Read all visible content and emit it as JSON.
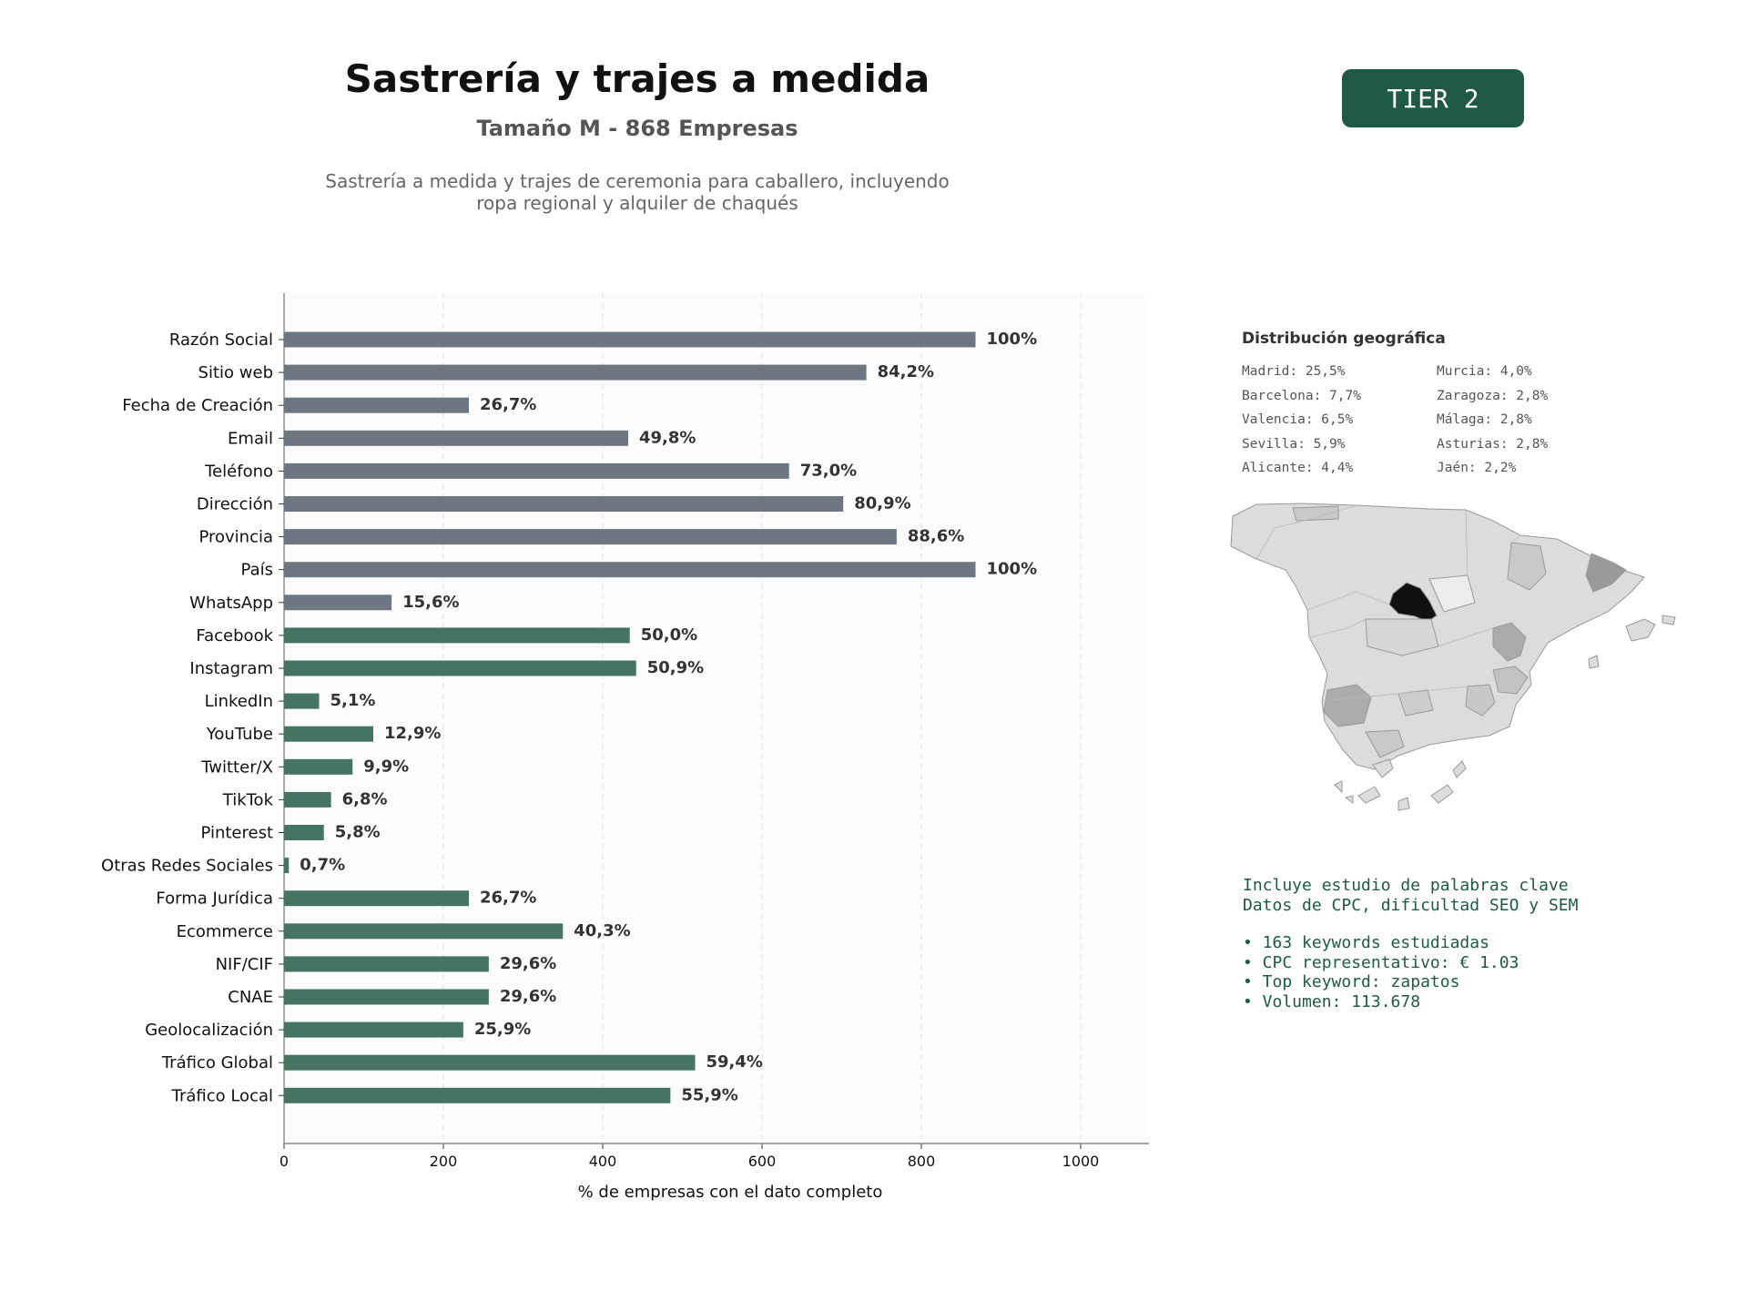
{
  "header": {
    "title": "Sastrería y trajes a medida",
    "subtitle": "Tamaño M - 868 Empresas",
    "description_line1": "Sastrería a medida y trajes de ceremonia para caballero, incluyendo",
    "description_line2": "ropa regional y alquiler de chaqués",
    "tier": "TIER 2"
  },
  "colors": {
    "gray_bar": "#6e7781",
    "green_bar": "#467463",
    "accent": "#1e5a46"
  },
  "chart_data": {
    "type": "bar",
    "orientation": "horizontal",
    "xlabel": "% de empresas con el dato completo",
    "xlim": [
      0,
      1085
    ],
    "xticks": [
      0,
      200,
      400,
      600,
      800,
      1000
    ],
    "grid": "vertical dashed",
    "categories": [
      "Razón Social",
      "Sitio web",
      "Fecha de Creación",
      "Email",
      "Teléfono",
      "Dirección",
      "Provincia",
      "País",
      "WhatsApp",
      "Facebook",
      "Instagram",
      "LinkedIn",
      "YouTube",
      "Twitter/X",
      "TikTok",
      "Pinterest",
      "Otras Redes Sociales",
      "Forma Jurídica",
      "Ecommerce",
      "NIF/CIF",
      "CNAE",
      "Geolocalización",
      "Tráfico Global",
      "Tráfico Local"
    ],
    "values": [
      868,
      731,
      232,
      432,
      634,
      702,
      769,
      868,
      135,
      434,
      442,
      44,
      112,
      86,
      59,
      50,
      6,
      232,
      350,
      257,
      257,
      225,
      516,
      485
    ],
    "labels": [
      "100%",
      "84,2%",
      "26,7%",
      "49,8%",
      "73,0%",
      "80,9%",
      "88,6%",
      "100%",
      "15,6%",
      "50,0%",
      "50,9%",
      "5,1%",
      "12,9%",
      "9,9%",
      "6,8%",
      "5,8%",
      "0,7%",
      "26,7%",
      "40,3%",
      "29,6%",
      "29,6%",
      "25,9%",
      "59,4%",
      "55,9%"
    ],
    "groups": [
      "gray",
      "gray",
      "gray",
      "gray",
      "gray",
      "gray",
      "gray",
      "gray",
      "gray",
      "green",
      "green",
      "green",
      "green",
      "green",
      "green",
      "green",
      "green",
      "green",
      "green",
      "green",
      "green",
      "green",
      "green",
      "green"
    ]
  },
  "geo": {
    "title": "Distribución geográfica",
    "items": [
      "Madrid: 25,5%",
      "Murcia: 4,0%",
      "Barcelona: 7,7%",
      "Zaragoza: 2,8%",
      "Valencia: 6,5%",
      "Málaga: 2,8%",
      "Sevilla: 5,9%",
      "Asturias: 2,8%",
      "Alicante: 4,4%",
      "Jaén: 2,2%"
    ]
  },
  "keywords": {
    "line1": "Incluye estudio de palabras clave",
    "line2": "Datos de CPC, dificultad SEO y SEM",
    "bullets": [
      "• 163 keywords estudiadas",
      "• CPC representativo: € 1.03",
      "• Top keyword: zapatos",
      "• Volumen: 113.678"
    ]
  }
}
